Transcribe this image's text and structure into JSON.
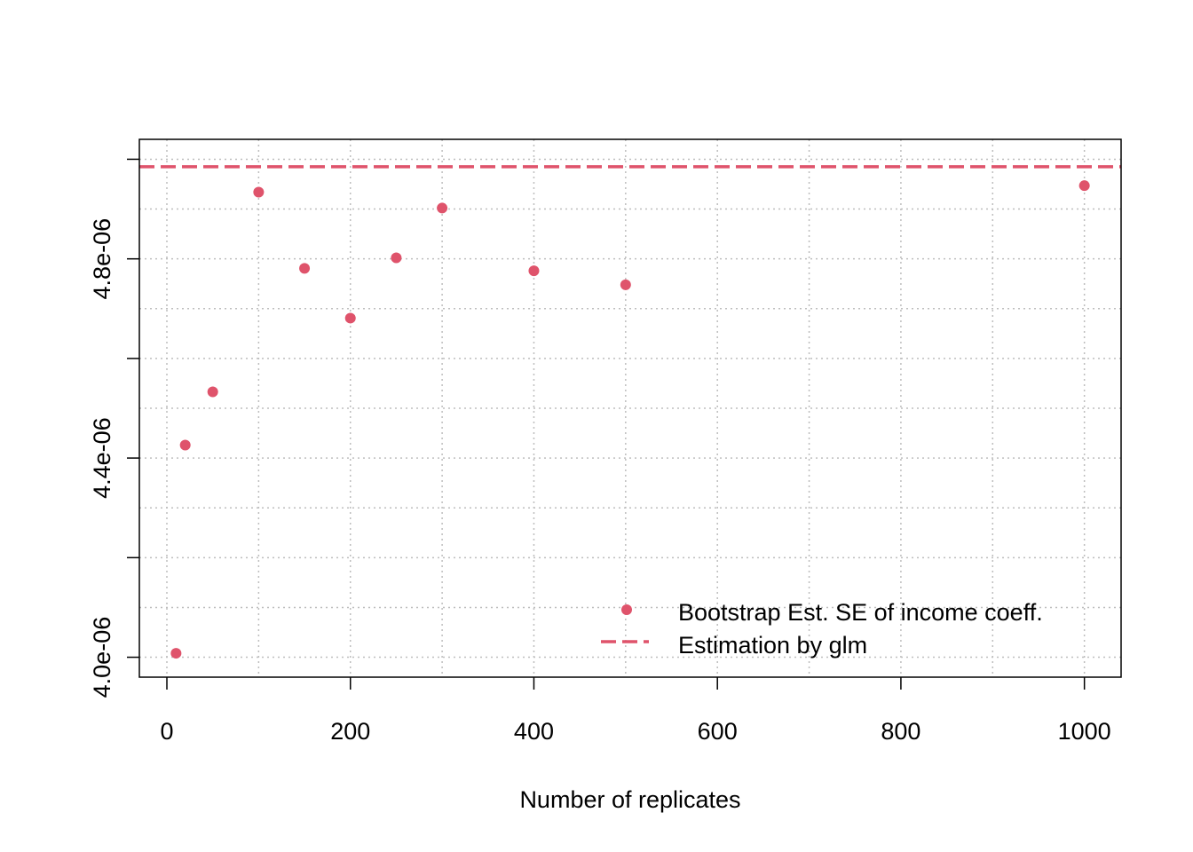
{
  "chart_data": {
    "type": "scatter",
    "title": "",
    "xlabel": "Number of replicates",
    "ylabel": "",
    "xlim": [
      -30,
      1040
    ],
    "ylim": [
      3.96e-06,
      5.04e-06
    ],
    "x_ticks": [
      0,
      200,
      400,
      600,
      800,
      1000
    ],
    "x_tick_labels": [
      "0",
      "200",
      "400",
      "600",
      "800",
      "1000"
    ],
    "x_grid": [
      0,
      100,
      200,
      300,
      400,
      500,
      600,
      700,
      800,
      900,
      1000
    ],
    "y_ticks": [
      4e-06,
      4.2e-06,
      4.4e-06,
      4.6e-06,
      4.8e-06,
      5e-06
    ],
    "y_labeled": [
      {
        "value": 4e-06,
        "label": "4.0e-06"
      },
      {
        "value": 4.4e-06,
        "label": "4.4e-06"
      },
      {
        "value": 4.8e-06,
        "label": "4.8e-06"
      }
    ],
    "y_grid": [
      4e-06,
      4.1e-06,
      4.2e-06,
      4.3e-06,
      4.4e-06,
      4.5e-06,
      4.6e-06,
      4.7e-06,
      4.8e-06,
      4.9e-06,
      5e-06
    ],
    "grid": true,
    "series": [
      {
        "name": "Bootstrap Est. SE of income coeff.",
        "kind": "points",
        "color": "#DF536B",
        "x": [
          10,
          20,
          50,
          100,
          150,
          200,
          250,
          300,
          400,
          500,
          1000
        ],
        "y": [
          4.008e-06,
          4.426e-06,
          4.533e-06,
          4.934e-06,
          4.781e-06,
          4.681e-06,
          4.802e-06,
          4.902e-06,
          4.776e-06,
          4.748e-06,
          4.947e-06
        ]
      },
      {
        "name": "Estimation by glm",
        "kind": "hline",
        "color": "#DF536B",
        "y": 4.985e-06
      }
    ],
    "legend": {
      "position": "bottom-right",
      "entries": [
        "Bootstrap Est. SE of income coeff.",
        "Estimation by glm"
      ]
    }
  }
}
